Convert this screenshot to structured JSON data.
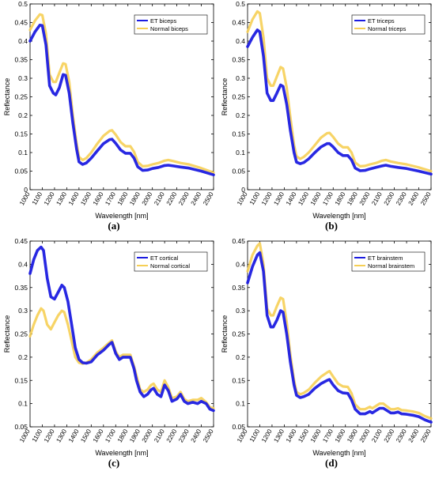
{
  "chart_data": [
    {
      "type": "line",
      "panel_label": "(a)",
      "xlabel": "Wavelength [nm]",
      "ylabel": "Reflectance",
      "xlim": [
        1000,
        2500
      ],
      "ylim": [
        0,
        0.5
      ],
      "xticks": [
        1000,
        1100,
        1200,
        1300,
        1400,
        1500,
        1600,
        1700,
        1800,
        1900,
        2000,
        2100,
        2200,
        2300,
        2400,
        2500
      ],
      "xtick_labels": [
        "1000",
        "1100",
        "1200",
        "1300",
        "1400",
        "1500",
        "1600",
        "1700",
        "1800",
        "1900",
        "2000",
        "2100",
        "2200",
        "2300",
        "2400",
        "2500"
      ],
      "yticks": [
        0,
        0.05,
        0.1,
        0.15,
        0.2,
        0.25,
        0.3,
        0.35,
        0.4,
        0.45,
        0.5
      ],
      "ytick_labels": [
        "0",
        "0.05",
        "0.1",
        "0.15",
        "0.2",
        "0.25",
        "0.3",
        "0.35",
        "0.4",
        "0.45",
        "0.5"
      ],
      "legend_position": "top-right",
      "series": [
        {
          "name": "ET biceps",
          "color": "#1c1ce0",
          "x": [
            1000,
            1040,
            1080,
            1100,
            1130,
            1160,
            1190,
            1210,
            1240,
            1270,
            1290,
            1320,
            1350,
            1380,
            1400,
            1430,
            1460,
            1500,
            1550,
            1600,
            1650,
            1670,
            1700,
            1740,
            1780,
            1820,
            1850,
            1880,
            1920,
            1960,
            2000,
            2050,
            2100,
            2130,
            2170,
            2230,
            2300,
            2400,
            2500
          ],
          "y": [
            0.4,
            0.425,
            0.443,
            0.442,
            0.39,
            0.28,
            0.26,
            0.255,
            0.275,
            0.31,
            0.308,
            0.26,
            0.18,
            0.11,
            0.075,
            0.068,
            0.072,
            0.085,
            0.105,
            0.124,
            0.135,
            0.136,
            0.125,
            0.107,
            0.098,
            0.098,
            0.085,
            0.062,
            0.052,
            0.053,
            0.057,
            0.06,
            0.065,
            0.066,
            0.064,
            0.061,
            0.058,
            0.05,
            0.04
          ]
        },
        {
          "name": "Normal biceps",
          "color": "#f6cf55",
          "x": [
            1000,
            1040,
            1080,
            1100,
            1130,
            1160,
            1190,
            1210,
            1240,
            1270,
            1290,
            1320,
            1350,
            1380,
            1400,
            1430,
            1460,
            1500,
            1550,
            1600,
            1650,
            1670,
            1700,
            1740,
            1780,
            1820,
            1850,
            1880,
            1920,
            1960,
            2000,
            2050,
            2100,
            2130,
            2170,
            2230,
            2300,
            2400,
            2500
          ],
          "y": [
            0.43,
            0.455,
            0.472,
            0.47,
            0.42,
            0.31,
            0.29,
            0.29,
            0.315,
            0.34,
            0.338,
            0.29,
            0.2,
            0.125,
            0.088,
            0.08,
            0.085,
            0.1,
            0.124,
            0.145,
            0.158,
            0.16,
            0.148,
            0.128,
            0.117,
            0.117,
            0.102,
            0.075,
            0.063,
            0.064,
            0.068,
            0.072,
            0.078,
            0.08,
            0.077,
            0.072,
            0.068,
            0.058,
            0.046
          ]
        }
      ]
    },
    {
      "type": "line",
      "panel_label": "(b)",
      "xlabel": "Wavelength [nm]",
      "ylabel": "Reflectance",
      "xlim": [
        1000,
        2500
      ],
      "ylim": [
        0,
        0.5
      ],
      "xticks": [
        1000,
        1100,
        1200,
        1300,
        1400,
        1500,
        1600,
        1700,
        1800,
        1900,
        2000,
        2100,
        2200,
        2300,
        2400,
        2500
      ],
      "xtick_labels": [
        "1000",
        "1100",
        "1200",
        "1300",
        "1400",
        "1500",
        "1600",
        "1700",
        "1800",
        "1900",
        "2000",
        "2100",
        "2200",
        "2300",
        "2400",
        "2500"
      ],
      "yticks": [
        0,
        0.05,
        0.1,
        0.15,
        0.2,
        0.25,
        0.3,
        0.35,
        0.4,
        0.45,
        0.5
      ],
      "ytick_labels": [
        "0",
        "0.05",
        "0.1",
        "0.15",
        "0.2",
        "0.25",
        "0.3",
        "0.35",
        "0.4",
        "0.45",
        "0.5"
      ],
      "legend_position": "top-right",
      "series": [
        {
          "name": "ET triceps",
          "color": "#1c1ce0",
          "x": [
            1000,
            1040,
            1080,
            1100,
            1130,
            1160,
            1190,
            1210,
            1240,
            1270,
            1290,
            1320,
            1350,
            1380,
            1400,
            1430,
            1460,
            1500,
            1550,
            1600,
            1650,
            1670,
            1700,
            1740,
            1780,
            1820,
            1850,
            1880,
            1920,
            1960,
            2000,
            2050,
            2100,
            2130,
            2170,
            2230,
            2300,
            2400,
            2500
          ],
          "y": [
            0.385,
            0.41,
            0.43,
            0.425,
            0.36,
            0.26,
            0.24,
            0.24,
            0.26,
            0.282,
            0.278,
            0.23,
            0.16,
            0.1,
            0.074,
            0.07,
            0.073,
            0.083,
            0.1,
            0.115,
            0.124,
            0.124,
            0.115,
            0.1,
            0.092,
            0.092,
            0.08,
            0.058,
            0.051,
            0.052,
            0.056,
            0.06,
            0.064,
            0.066,
            0.063,
            0.06,
            0.057,
            0.05,
            0.042
          ]
        },
        {
          "name": "Normal triceps",
          "color": "#f6cf55",
          "x": [
            1000,
            1040,
            1080,
            1100,
            1130,
            1160,
            1190,
            1210,
            1240,
            1270,
            1290,
            1320,
            1350,
            1380,
            1400,
            1430,
            1460,
            1500,
            1550,
            1600,
            1650,
            1670,
            1700,
            1740,
            1780,
            1820,
            1850,
            1880,
            1920,
            1960,
            2000,
            2050,
            2100,
            2130,
            2170,
            2230,
            2300,
            2400,
            2500
          ],
          "y": [
            0.425,
            0.458,
            0.48,
            0.475,
            0.41,
            0.3,
            0.28,
            0.28,
            0.305,
            0.33,
            0.326,
            0.275,
            0.195,
            0.12,
            0.09,
            0.083,
            0.088,
            0.1,
            0.12,
            0.14,
            0.152,
            0.153,
            0.142,
            0.124,
            0.114,
            0.114,
            0.1,
            0.073,
            0.063,
            0.064,
            0.068,
            0.072,
            0.078,
            0.08,
            0.076,
            0.072,
            0.068,
            0.06,
            0.05
          ]
        }
      ]
    },
    {
      "type": "line",
      "panel_label": "(c)",
      "xlabel": "Wavelength [nm]",
      "ylabel": "Reflectance",
      "xlim": [
        1000,
        2500
      ],
      "ylim": [
        0.05,
        0.45
      ],
      "xticks": [
        1000,
        1100,
        1200,
        1300,
        1400,
        1500,
        1600,
        1700,
        1800,
        1900,
        2000,
        2100,
        2200,
        2300,
        2400,
        2500
      ],
      "xtick_labels": [
        "1000",
        "1100",
        "1200",
        "1300",
        "1400",
        "1500",
        "1600",
        "1700",
        "1800",
        "1900",
        "2000",
        "2100",
        "2200",
        "2300",
        "2400",
        "2500"
      ],
      "yticks": [
        0.05,
        0.1,
        0.15,
        0.2,
        0.25,
        0.3,
        0.35,
        0.4,
        0.45
      ],
      "ytick_labels": [
        "0.05",
        "0.1",
        "0.15",
        "0.2",
        "0.25",
        "0.3",
        "0.35",
        "0.4",
        "0.45"
      ],
      "legend_position": "top-right",
      "series": [
        {
          "name": "ET cortical",
          "color": "#1c1ce0",
          "x": [
            1000,
            1030,
            1060,
            1090,
            1110,
            1140,
            1170,
            1200,
            1230,
            1260,
            1280,
            1310,
            1340,
            1370,
            1400,
            1430,
            1460,
            1500,
            1550,
            1600,
            1650,
            1670,
            1700,
            1730,
            1760,
            1790,
            1820,
            1850,
            1870,
            1900,
            1930,
            1960,
            1990,
            2010,
            2040,
            2070,
            2100,
            2130,
            2160,
            2200,
            2230,
            2260,
            2290,
            2330,
            2370,
            2400,
            2440,
            2470,
            2500
          ],
          "y": [
            0.38,
            0.41,
            0.43,
            0.437,
            0.43,
            0.37,
            0.33,
            0.325,
            0.34,
            0.355,
            0.35,
            0.32,
            0.27,
            0.22,
            0.195,
            0.188,
            0.187,
            0.19,
            0.205,
            0.215,
            0.228,
            0.232,
            0.208,
            0.195,
            0.2,
            0.2,
            0.2,
            0.175,
            0.15,
            0.125,
            0.115,
            0.12,
            0.13,
            0.133,
            0.12,
            0.115,
            0.14,
            0.128,
            0.105,
            0.11,
            0.12,
            0.105,
            0.1,
            0.103,
            0.1,
            0.105,
            0.1,
            0.088,
            0.085
          ]
        },
        {
          "name": "Normal cortical",
          "color": "#f6cf55",
          "x": [
            1000,
            1030,
            1060,
            1090,
            1110,
            1140,
            1170,
            1200,
            1230,
            1260,
            1280,
            1310,
            1340,
            1370,
            1400,
            1430,
            1460,
            1500,
            1550,
            1600,
            1650,
            1670,
            1700,
            1730,
            1760,
            1790,
            1820,
            1850,
            1870,
            1900,
            1930,
            1960,
            1990,
            2010,
            2040,
            2070,
            2100,
            2130,
            2160,
            2200,
            2230,
            2260,
            2290,
            2330,
            2370,
            2400,
            2440,
            2470,
            2500
          ],
          "y": [
            0.245,
            0.27,
            0.29,
            0.305,
            0.3,
            0.27,
            0.26,
            0.275,
            0.29,
            0.3,
            0.297,
            0.27,
            0.235,
            0.2,
            0.188,
            0.186,
            0.188,
            0.195,
            0.21,
            0.22,
            0.232,
            0.236,
            0.212,
            0.2,
            0.205,
            0.205,
            0.205,
            0.18,
            0.16,
            0.13,
            0.125,
            0.13,
            0.14,
            0.143,
            0.13,
            0.125,
            0.15,
            0.135,
            0.112,
            0.115,
            0.125,
            0.11,
            0.105,
            0.108,
            0.108,
            0.112,
            0.103,
            0.092,
            0.09
          ]
        }
      ]
    },
    {
      "type": "line",
      "panel_label": "(d)",
      "xlabel": "Wavelength [nm]",
      "ylabel": "Reflectance",
      "xlim": [
        1000,
        2500
      ],
      "ylim": [
        0.05,
        0.45
      ],
      "xticks": [
        1000,
        1100,
        1200,
        1300,
        1400,
        1500,
        1600,
        1700,
        1800,
        1900,
        2000,
        2100,
        2200,
        2300,
        2400,
        2500
      ],
      "xtick_labels": [
        "1000",
        "1100",
        "1200",
        "1300",
        "1400",
        "1500",
        "1600",
        "1700",
        "1800",
        "1900",
        "2000",
        "2100",
        "2200",
        "2300",
        "2400",
        "2500"
      ],
      "yticks": [
        0.05,
        0.1,
        0.15,
        0.2,
        0.25,
        0.3,
        0.35,
        0.4,
        0.45
      ],
      "ytick_labels": [
        "0.05",
        "0.1",
        "0.15",
        "0.2",
        "0.25",
        "0.3",
        "0.35",
        "0.4",
        "0.45"
      ],
      "legend_position": "top-right",
      "series": [
        {
          "name": "ET brainstem",
          "color": "#1c1ce0",
          "x": [
            1000,
            1040,
            1080,
            1100,
            1130,
            1160,
            1190,
            1210,
            1240,
            1270,
            1290,
            1320,
            1350,
            1380,
            1400,
            1430,
            1460,
            1500,
            1550,
            1600,
            1650,
            1670,
            1700,
            1740,
            1780,
            1820,
            1850,
            1880,
            1920,
            1960,
            2000,
            2020,
            2050,
            2080,
            2110,
            2140,
            2170,
            2200,
            2230,
            2260,
            2300,
            2350,
            2400,
            2450,
            2500
          ],
          "y": [
            0.36,
            0.395,
            0.42,
            0.425,
            0.385,
            0.29,
            0.265,
            0.265,
            0.28,
            0.3,
            0.297,
            0.25,
            0.19,
            0.14,
            0.118,
            0.113,
            0.115,
            0.12,
            0.133,
            0.143,
            0.15,
            0.152,
            0.14,
            0.128,
            0.123,
            0.122,
            0.108,
            0.088,
            0.078,
            0.078,
            0.083,
            0.08,
            0.085,
            0.09,
            0.09,
            0.085,
            0.08,
            0.08,
            0.082,
            0.078,
            0.077,
            0.075,
            0.072,
            0.065,
            0.06
          ]
        },
        {
          "name": "Normal brainstem",
          "color": "#f6cf55",
          "x": [
            1000,
            1040,
            1080,
            1100,
            1130,
            1160,
            1190,
            1210,
            1240,
            1270,
            1290,
            1320,
            1350,
            1380,
            1400,
            1430,
            1460,
            1500,
            1550,
            1600,
            1650,
            1670,
            1700,
            1740,
            1780,
            1820,
            1850,
            1880,
            1920,
            1960,
            2000,
            2020,
            2050,
            2080,
            2110,
            2140,
            2170,
            2200,
            2230,
            2260,
            2300,
            2350,
            2400,
            2450,
            2500
          ],
          "y": [
            0.385,
            0.42,
            0.44,
            0.445,
            0.4,
            0.305,
            0.29,
            0.29,
            0.31,
            0.328,
            0.325,
            0.275,
            0.205,
            0.15,
            0.125,
            0.12,
            0.123,
            0.13,
            0.145,
            0.158,
            0.167,
            0.17,
            0.158,
            0.143,
            0.137,
            0.136,
            0.122,
            0.098,
            0.088,
            0.088,
            0.093,
            0.09,
            0.095,
            0.1,
            0.1,
            0.094,
            0.088,
            0.088,
            0.09,
            0.086,
            0.085,
            0.083,
            0.08,
            0.073,
            0.068
          ]
        }
      ]
    }
  ]
}
